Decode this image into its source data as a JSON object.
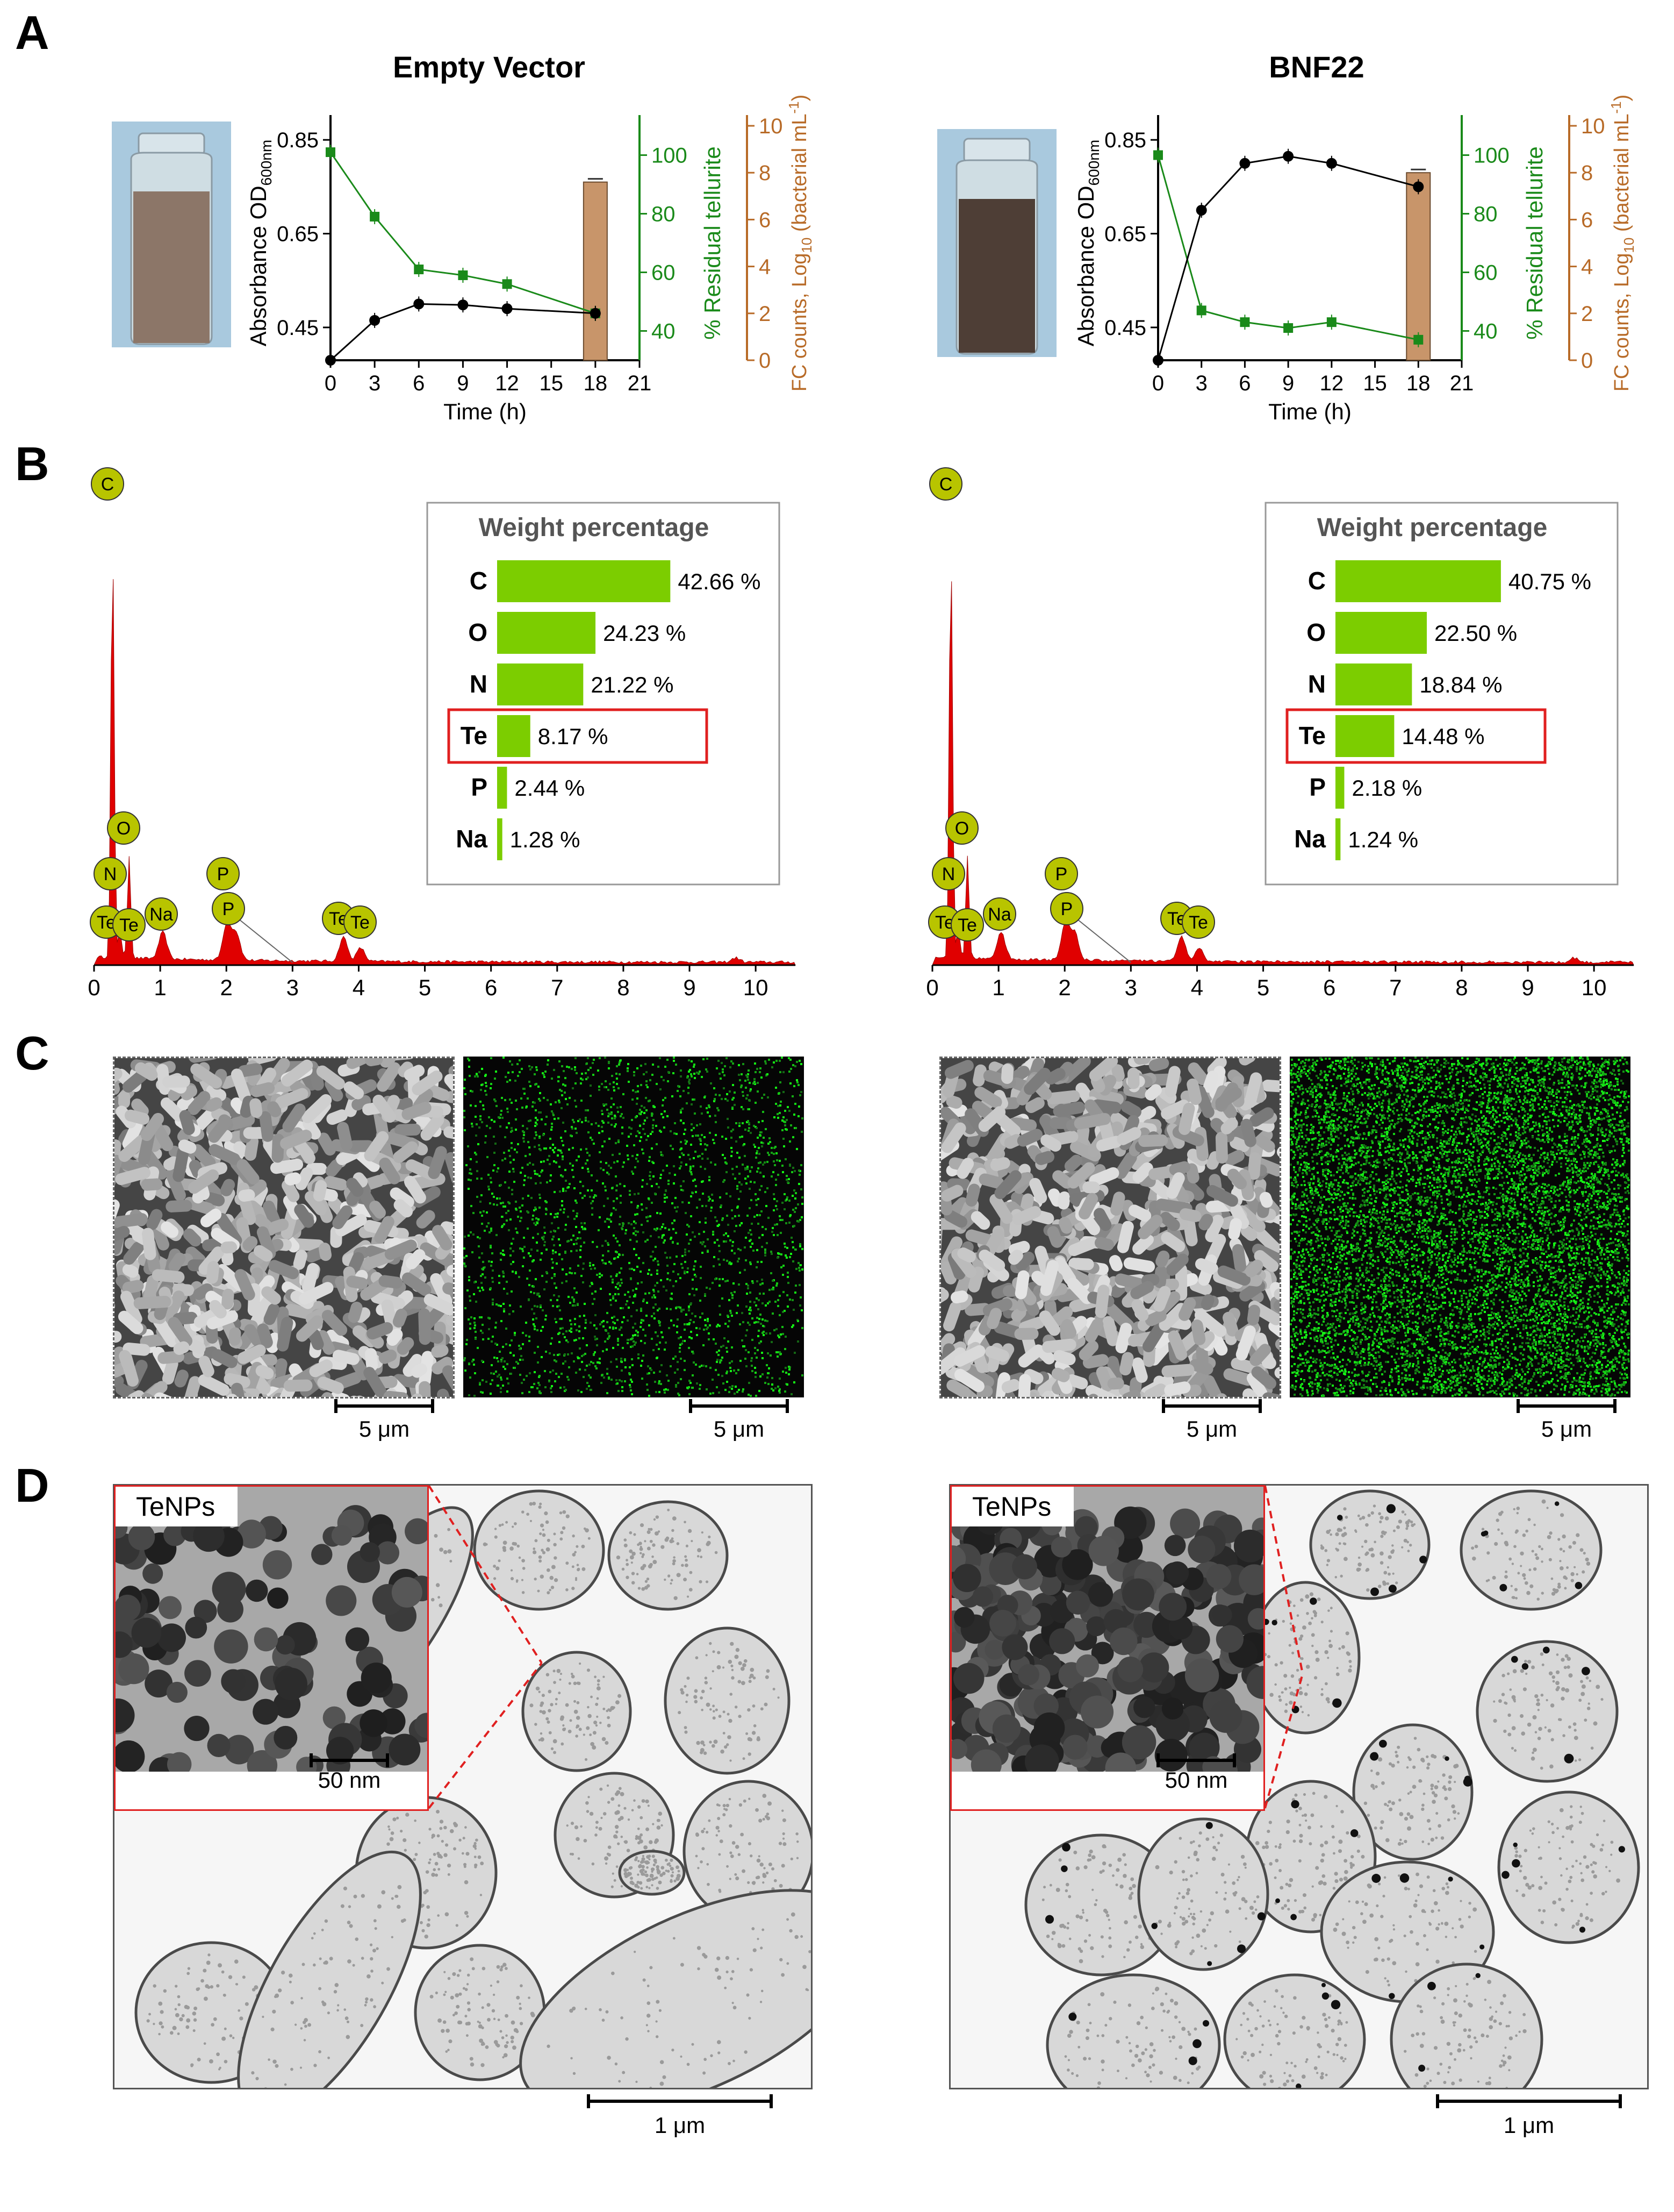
{
  "panel_labels": {
    "A": "A",
    "B": "B",
    "C": "C",
    "D": "D"
  },
  "colors": {
    "growth": "#000000",
    "tellurite": "#1a8a1a",
    "fc": "#c8956a",
    "fc_axis": "#b86b28",
    "eds_fill": "#e00000",
    "bar": "#7ccd00",
    "element_badge": "#b8c400",
    "te_highlight": "#e02020"
  },
  "panelA": [
    {
      "title": "Empty Vector",
      "left_axis_label": "Absorbance OD",
      "left_axis_sub": "600nm",
      "right_axis1_label": "% Residual tellurite",
      "right_axis2_label": "FC counts, Log",
      "right_axis2_sub": "10",
      "right_axis2_tail": " (bacterial mL",
      "right_axis2_sup": "-1",
      "right_axis2_end": ")",
      "xlabel": "Time (h)"
    },
    {
      "title": "BNF22",
      "left_axis_label": "Absorbance OD",
      "left_axis_sub": "600nm",
      "right_axis1_label": "% Residual tellurite",
      "right_axis2_label": "FC counts, Log",
      "right_axis2_sub": "10",
      "right_axis2_tail": " (bacterial mL",
      "right_axis2_sup": "-1",
      "right_axis2_end": ")",
      "xlabel": "Time (h)"
    }
  ],
  "chart_data": [
    {
      "type": "line",
      "title": "Empty Vector",
      "xlabel": "Time (h)",
      "x_ticks": [
        0,
        3,
        6,
        9,
        12,
        15,
        18,
        21
      ],
      "xlim": [
        0,
        21
      ],
      "yleft": {
        "label": "Absorbance OD600nm",
        "ticks": [
          0.45,
          0.65,
          0.85
        ],
        "ylim": [
          0.38,
          0.88
        ]
      },
      "yright1": {
        "label": "% Residual tellurite",
        "ticks": [
          40,
          60,
          80,
          100
        ],
        "ylim": [
          30,
          110
        ]
      },
      "yright2": {
        "label": "FC counts, Log10 (bacterial mL-1)",
        "ticks": [
          0,
          2,
          4,
          6,
          8,
          10
        ],
        "ylim": [
          0,
          10
        ]
      },
      "series": [
        {
          "name": "Absorbance OD600nm",
          "axis": "left",
          "x": [
            0,
            3,
            6,
            9,
            12,
            18
          ],
          "y": [
            0.38,
            0.465,
            0.5,
            0.498,
            0.49,
            0.48
          ]
        },
        {
          "name": "% Residual tellurite",
          "axis": "right1",
          "x": [
            0,
            3,
            6,
            9,
            12,
            18
          ],
          "y": [
            101,
            79,
            61,
            59,
            56,
            46
          ]
        },
        {
          "name": "FC counts, Log10 (bacterial mL-1)",
          "type": "bar",
          "axis": "right2",
          "x": [
            18
          ],
          "y": [
            7.6
          ]
        }
      ]
    },
    {
      "type": "line",
      "title": "BNF22",
      "xlabel": "Time (h)",
      "x_ticks": [
        0,
        3,
        6,
        9,
        12,
        15,
        18,
        21
      ],
      "xlim": [
        0,
        21
      ],
      "yleft": {
        "label": "Absorbance OD600nm",
        "ticks": [
          0.45,
          0.65,
          0.85
        ],
        "ylim": [
          0.38,
          0.88
        ]
      },
      "yright1": {
        "label": "% Residual tellurite",
        "ticks": [
          40,
          60,
          80,
          100
        ],
        "ylim": [
          30,
          110
        ]
      },
      "yright2": {
        "label": "FC counts, Log10 (bacterial mL-1)",
        "ticks": [
          0,
          2,
          4,
          6,
          8,
          10
        ],
        "ylim": [
          0,
          10
        ]
      },
      "series": [
        {
          "name": "Absorbance OD600nm",
          "axis": "left",
          "x": [
            0,
            3,
            6,
            9,
            12,
            18
          ],
          "y": [
            0.38,
            0.7,
            0.8,
            0.815,
            0.8,
            0.75
          ]
        },
        {
          "name": "% Residual tellurite",
          "axis": "right1",
          "x": [
            0,
            3,
            6,
            9,
            12,
            18
          ],
          "y": [
            100,
            47,
            43,
            41,
            43,
            37
          ]
        },
        {
          "name": "FC counts, Log10 (bacterial mL-1)",
          "type": "bar",
          "axis": "right2",
          "x": [
            18
          ],
          "y": [
            8.0
          ]
        }
      ]
    }
  ],
  "panelB": [
    {
      "weight_title": "Weight percentage",
      "x_ticks": [
        "0",
        "1",
        "2",
        "3",
        "4",
        "5",
        "6",
        "7",
        "8",
        "9",
        "10"
      ],
      "badges": [
        "C",
        "O",
        "N",
        "Te",
        "Te",
        "Na",
        "P",
        "P",
        "Te",
        "Te"
      ],
      "rows": [
        {
          "el": "C",
          "pct": 42.66,
          "label": "42.66 %"
        },
        {
          "el": "O",
          "pct": 24.23,
          "label": "24.23 %"
        },
        {
          "el": "N",
          "pct": 21.22,
          "label": "21.22 %"
        },
        {
          "el": "Te",
          "pct": 8.17,
          "label": "8.17 %",
          "highlight": true
        },
        {
          "el": "P",
          "pct": 2.44,
          "label": "2.44 %"
        },
        {
          "el": "Na",
          "pct": 1.28,
          "label": "1.28 %"
        }
      ]
    },
    {
      "weight_title": "Weight percentage",
      "x_ticks": [
        "0",
        "1",
        "2",
        "3",
        "4",
        "5",
        "6",
        "7",
        "8",
        "9",
        "10"
      ],
      "badges": [
        "C",
        "O",
        "N",
        "Te",
        "Te",
        "Na",
        "P",
        "P",
        "Te",
        "Te"
      ],
      "rows": [
        {
          "el": "C",
          "pct": 40.75,
          "label": "40.75 %"
        },
        {
          "el": "O",
          "pct": 22.5,
          "label": "22.50 %"
        },
        {
          "el": "N",
          "pct": 18.84,
          "label": "18.84 %"
        },
        {
          "el": "Te",
          "pct": 14.48,
          "label": "14.48 %",
          "highlight": true
        },
        {
          "el": "P",
          "pct": 2.18,
          "label": "2.18 %"
        },
        {
          "el": "Na",
          "pct": 1.24,
          "label": "1.24 %"
        }
      ]
    }
  ],
  "panelC": {
    "scale": "5 μm"
  },
  "panelD": {
    "inset_label": "TeNPs",
    "inset_scale": "50 nm",
    "main_scale": "1 μm"
  }
}
